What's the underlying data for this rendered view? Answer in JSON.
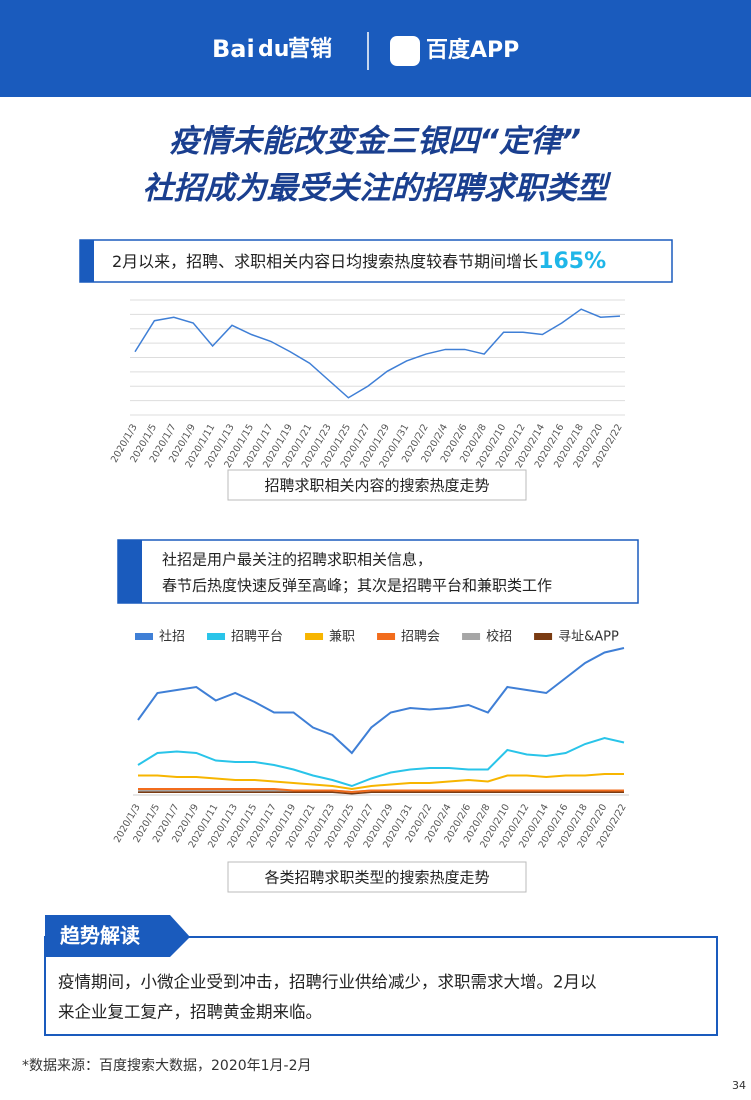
{
  "header": {
    "brand": "Bai",
    "brand_mark": "du",
    "brand_suffix": "营销",
    "app": "百度APP"
  },
  "title": [
    "疫情未能改变金三银四“定律”",
    "社招成为最受关注的招聘求职类型"
  ],
  "chart_data": [
    {
      "type": "line",
      "note": "2月以来，招聘、求职相关内容日均搜索热度较春节期间增长",
      "note_highlight": "165%",
      "caption": "招聘求职相关内容的搜索热度走势",
      "color": "#3f7fd6",
      "grid": true,
      "ylim": [
        0,
        100
      ],
      "categories": [
        "2020/1/3",
        "2020/1/5",
        "2020/1/7",
        "2020/1/9",
        "2020/1/11",
        "2020/1/13",
        "2020/1/15",
        "2020/1/17",
        "2020/1/19",
        "2020/1/21",
        "2020/1/23",
        "2020/1/25",
        "2020/1/27",
        "2020/1/29",
        "2020/1/31",
        "2020/2/2",
        "2020/2/4",
        "2020/2/6",
        "2020/2/8",
        "2020/2/10",
        "2020/2/12",
        "2020/2/14",
        "2020/2/16",
        "2020/2/18",
        "2020/2/20",
        "2020/2/22"
      ],
      "values": [
        55,
        82,
        85,
        80,
        60,
        78,
        70,
        64,
        55,
        45,
        30,
        15,
        25,
        38,
        47,
        53,
        57,
        57,
        53,
        72,
        72,
        70,
        80,
        92,
        85,
        86
      ]
    },
    {
      "type": "line",
      "note": [
        "社招是用户最关注的招聘求职相关信息，",
        "春节后热度快速反弹至高峰；其次是招聘平台和兼职类工作"
      ],
      "caption": "各类招聘求职类型的搜索热度走势",
      "grid": false,
      "ylim": [
        0,
        100
      ],
      "categories": [
        "2020/1/3",
        "2020/1/5",
        "2020/1/7",
        "2020/1/9",
        "2020/1/11",
        "2020/1/13",
        "2020/1/15",
        "2020/1/17",
        "2020/1/19",
        "2020/1/21",
        "2020/1/23",
        "2020/1/25",
        "2020/1/27",
        "2020/1/29",
        "2020/1/31",
        "2020/2/2",
        "2020/2/4",
        "2020/2/6",
        "2020/2/8",
        "2020/2/10",
        "2020/2/12",
        "2020/2/14",
        "2020/2/16",
        "2020/2/18",
        "2020/2/20",
        "2020/2/22"
      ],
      "series": [
        {
          "name": "社招",
          "color": "#3f7fd6",
          "values": [
            50,
            68,
            70,
            72,
            63,
            68,
            62,
            55,
            55,
            45,
            40,
            28,
            45,
            55,
            58,
            57,
            58,
            60,
            55,
            72,
            70,
            68,
            78,
            88,
            95,
            98
          ]
        },
        {
          "name": "招聘平台",
          "color": "#29c4e9",
          "values": [
            20,
            28,
            29,
            28,
            23,
            22,
            22,
            20,
            17,
            13,
            10,
            6,
            11,
            15,
            17,
            18,
            18,
            17,
            17,
            30,
            27,
            26,
            28,
            34,
            38,
            35
          ]
        },
        {
          "name": "兼职",
          "color": "#f7b500",
          "values": [
            13,
            13,
            12,
            12,
            11,
            10,
            10,
            9,
            8,
            7,
            6,
            4,
            6,
            7,
            8,
            8,
            9,
            10,
            9,
            13,
            13,
            12,
            13,
            13,
            14,
            14
          ]
        },
        {
          "name": "招聘会",
          "color": "#f26c1c",
          "values": [
            4,
            4,
            4,
            4,
            4,
            4,
            4,
            4,
            3,
            3,
            3,
            2,
            3,
            3,
            3,
            3,
            3,
            3,
            3,
            3,
            3,
            3,
            3,
            3,
            3,
            3
          ]
        },
        {
          "name": "校招",
          "color": "#a6a6a6",
          "values": [
            3,
            3,
            3,
            3,
            3,
            3,
            3,
            3,
            3,
            3,
            3,
            2,
            3,
            3,
            3,
            3,
            3,
            3,
            3,
            3,
            3,
            3,
            3,
            3,
            3,
            3
          ]
        },
        {
          "name": "寻址&APP",
          "color": "#7a3b12",
          "values": [
            2,
            2,
            2,
            2,
            2,
            2,
            2,
            2,
            2,
            2,
            2,
            1,
            2,
            2,
            2,
            2,
            2,
            2,
            2,
            2,
            2,
            2,
            2,
            2,
            2,
            2
          ]
        }
      ]
    }
  ],
  "insight": {
    "heading": "趋势解读",
    "lines": [
      "疫情期间，小微企业受到冲击，招聘行业供给减少，求职需求大增。2月以",
      "来企业复工复产，招聘黄金期来临。"
    ]
  },
  "source": "*数据来源：百度搜索大数据，2020年1月-2月",
  "page_number": "34"
}
